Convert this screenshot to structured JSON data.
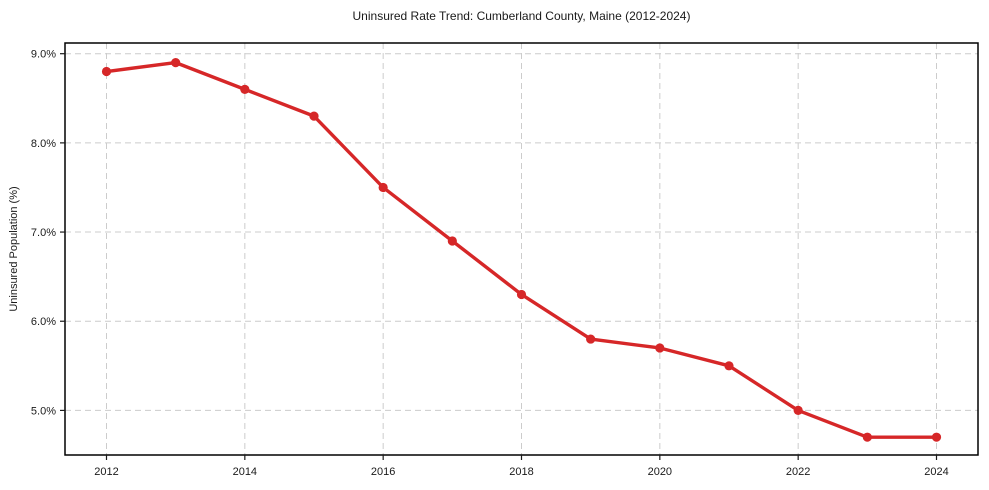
{
  "chart_data": {
    "type": "line",
    "title": "Uninsured Rate Trend: Cumberland County, Maine (2012-2024)",
    "xlabel": "",
    "ylabel": "Uninsured Population (%)",
    "x": [
      2012,
      2013,
      2014,
      2015,
      2016,
      2017,
      2018,
      2019,
      2020,
      2021,
      2022,
      2023,
      2024
    ],
    "values": [
      8.8,
      8.9,
      8.6,
      8.3,
      7.5,
      6.9,
      6.3,
      5.8,
      5.7,
      5.5,
      5.0,
      4.7,
      4.7
    ],
    "xticks": {
      "values": [
        2012,
        2014,
        2016,
        2018,
        2020,
        2022,
        2024
      ],
      "labels": [
        "2012",
        "2014",
        "2016",
        "2018",
        "2020",
        "2022",
        "2024"
      ]
    },
    "yticks": {
      "values": [
        5,
        6,
        7,
        8,
        9
      ],
      "labels": [
        "5.0%",
        "6.0%",
        "7.0%",
        "8.0%",
        "9.0%"
      ]
    },
    "xlim": [
      2011.4,
      2024.6
    ],
    "ylim": [
      4.5,
      9.12
    ],
    "grid": true,
    "grid_style": "dashed",
    "legend": false,
    "colors": {
      "line": "#d62728",
      "marker": "#d62728",
      "grid": "#cccccc",
      "spine": "#000000",
      "tick": "#1a1a1a",
      "text": "#1a1a1a",
      "background": "#ffffff"
    }
  }
}
